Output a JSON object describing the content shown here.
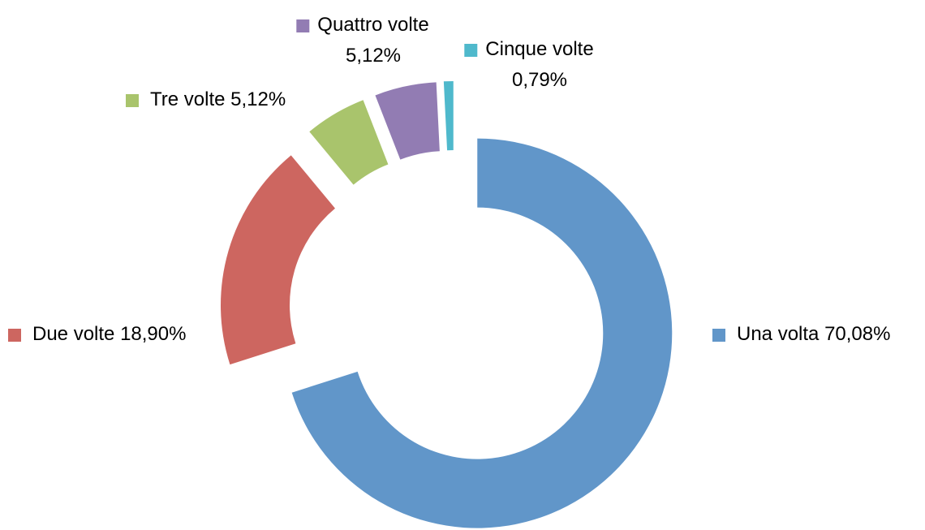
{
  "chart_data": {
    "type": "donut",
    "categories": [
      "Una volta",
      "Due volte",
      "Tre volte",
      "Quattro volte",
      "Cinque volte"
    ],
    "values": [
      70.08,
      18.9,
      5.12,
      5.12,
      0.79
    ],
    "value_labels": [
      "70,08%",
      "18,90%",
      "5,12%",
      "5,12%",
      "0,79%"
    ],
    "colors": [
      "#6196c9",
      "#cd6660",
      "#a9c46c",
      "#927cb3",
      "#4fb9cc"
    ]
  }
}
